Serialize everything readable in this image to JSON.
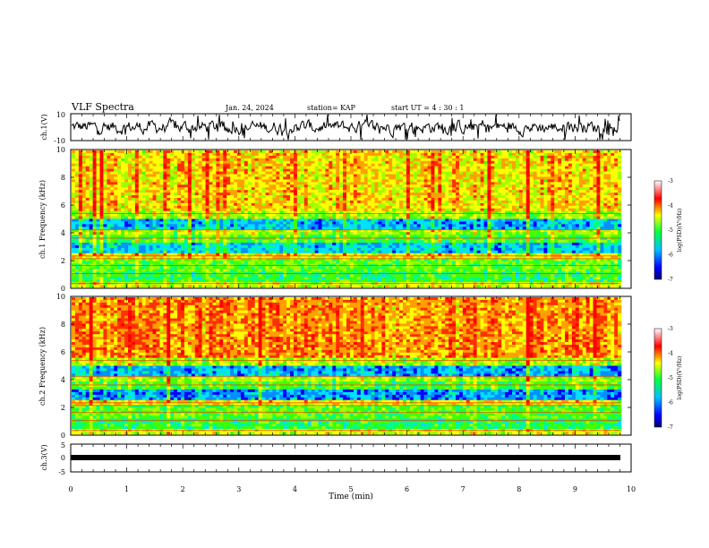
{
  "header": {
    "title": "VLF Spectra",
    "date": "Jan. 24, 2024",
    "station": "station= KAP",
    "start_time": "start UT =  4 : 30 : 1"
  },
  "chart_data": [
    {
      "type": "line",
      "ylabel": "ch.1(V)",
      "xlim": [
        0,
        10
      ],
      "ylim": [
        -10,
        10
      ],
      "yticks": [
        "10",
        "-10"
      ],
      "note": "noisy waveform amplitude trace"
    },
    {
      "type": "heatmap",
      "ylabel": "ch.1  Frequency (kHz)",
      "xlim": [
        0,
        10
      ],
      "ylim": [
        0,
        10
      ],
      "yticks": [
        "0",
        "2",
        "4",
        "6",
        "8",
        "10"
      ],
      "colorbar": {
        "label": "log(PSD)(V²/Hz)",
        "range": [
          -7,
          -3
        ],
        "ticks": [
          "-3",
          "-4",
          "-5",
          "-6",
          "-7"
        ],
        "colors": [
          "#000070",
          "#0000ff",
          "#00c0ff",
          "#00ff40",
          "#ffff00",
          "#ff0000",
          "#ffffff"
        ]
      }
    },
    {
      "type": "heatmap",
      "ylabel": "ch.2  Frequency (kHz)",
      "xlim": [
        0,
        10
      ],
      "ylim": [
        0,
        10
      ],
      "yticks": [
        "0",
        "2",
        "4",
        "6",
        "8",
        "10"
      ],
      "colorbar": {
        "label": "log(PSD)(V²/Hz)",
        "range": [
          -7,
          -3
        ],
        "ticks": [
          "-3",
          "-4",
          "-5",
          "-6",
          "-7"
        ]
      }
    },
    {
      "type": "line",
      "ylabel": "ch.3(V)",
      "xlim": [
        0,
        10
      ],
      "ylim": [
        -5,
        5
      ],
      "yticks": [
        "5",
        "0",
        "-5"
      ],
      "xlabel": "Time (min)",
      "xticks": [
        "0",
        "1",
        "2",
        "3",
        "4",
        "5",
        "6",
        "7",
        "8",
        "9",
        "10"
      ]
    }
  ]
}
